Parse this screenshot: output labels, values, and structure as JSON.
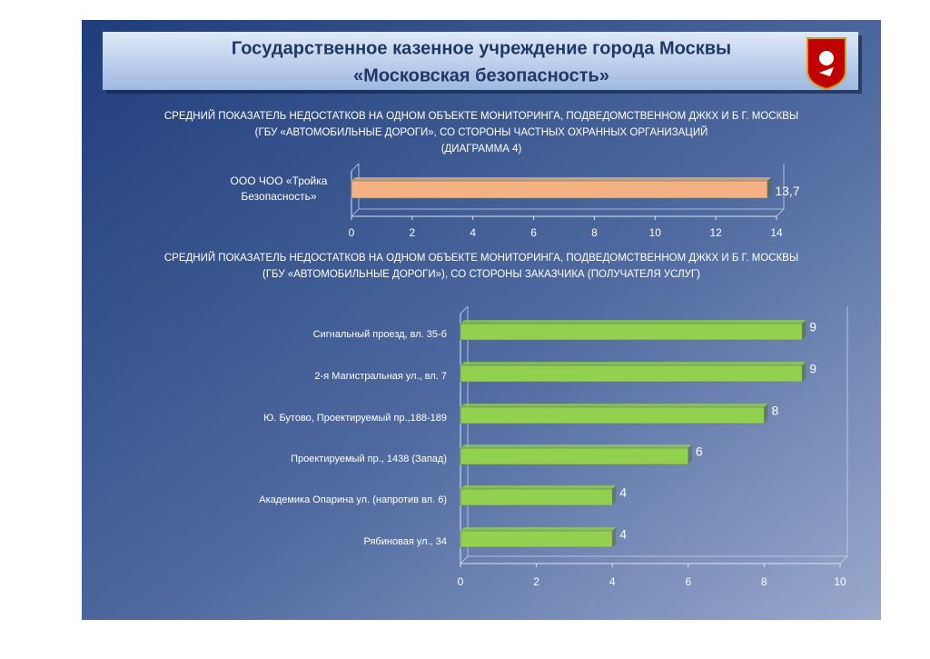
{
  "header": {
    "title": [
      "Государственное казенное учреждение города Москвы",
      "«Московская безопасность»"
    ]
  },
  "chart_data": [
    {
      "type": "bar",
      "orientation": "horizontal",
      "title": [
        "СРЕДНИЙ ПОКАЗАТЕЛЬ НЕДОСТАТКОВ НА ОДНОМ ОБЪЕКТЕ МОНИТОРИНГА, ПОДВЕДОМСТВЕННОМ ДЖКХ И Б Г.  МОСКВЫ",
        "(ГБУ «АВТОМОБИЛЬНЫЕ ДОРОГИ», СО СТОРОНЫ ЧАСТНЫХ ОХРАННЫХ ОРГАНИЗАЦИЙ",
        "(ДИАГРАММА 4)"
      ],
      "categories": [
        "ООО ЧОО «Тройка Безопасность»"
      ],
      "values": [
        13.7
      ],
      "value_labels": [
        "13,7"
      ],
      "color": "#f4b183",
      "xlim": [
        0,
        14
      ],
      "xticks": [
        0,
        2,
        4,
        6,
        8,
        10,
        12,
        14
      ]
    },
    {
      "type": "bar",
      "orientation": "horizontal",
      "title": [
        "СРЕДНИЙ ПОКАЗАТЕЛЬ НЕДОСТАТКОВ НА ОДНОМ ОБЪЕКТЕ МОНИТОРИНГА, ПОДВЕДОМСТВЕННОМ ДЖКХ И Б Г. МОСКВЫ",
        "(ГБУ «АВТОМОБИЛЬНЫЕ ДОРОГИ»),  СО СТОРОНЫ  ЗАКАЗЧИКА (ПОЛУЧАТЕЛЯ  УСЛУГ)"
      ],
      "categories": [
        "Сигнальный проезд, вл. 35-б",
        "2-я Магистральная ул., вл. 7",
        "Ю. Бутово, Проектируемый пр.,188-189",
        "Проектируемый пр., 1438 (Запад)",
        "Академика Опарина ул. (напротив вл. 6)",
        "Рябиновая ул., 34"
      ],
      "values": [
        9,
        9,
        8,
        6,
        4,
        4
      ],
      "color": "#92d050",
      "xlim": [
        0,
        10
      ],
      "xticks": [
        0,
        2,
        4,
        6,
        8,
        10
      ]
    }
  ]
}
